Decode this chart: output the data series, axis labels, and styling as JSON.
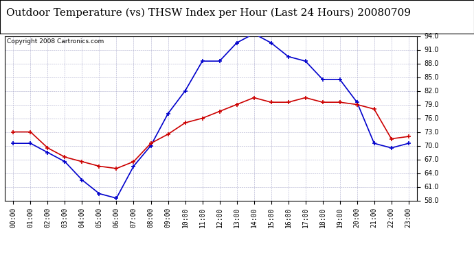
{
  "title": "Outdoor Temperature (vs) THSW Index per Hour (Last 24 Hours) 20080709",
  "copyright": "Copyright 2008 Cartronics.com",
  "hours": [
    "00:00",
    "01:00",
    "02:00",
    "03:00",
    "04:00",
    "05:00",
    "06:00",
    "07:00",
    "08:00",
    "09:00",
    "10:00",
    "11:00",
    "12:00",
    "13:00",
    "14:00",
    "15:00",
    "16:00",
    "17:00",
    "18:00",
    "19:00",
    "20:00",
    "21:00",
    "22:00",
    "23:00"
  ],
  "temp_red": [
    73.0,
    73.0,
    69.5,
    67.5,
    66.5,
    65.5,
    65.0,
    66.5,
    70.5,
    72.5,
    75.0,
    76.0,
    77.5,
    79.0,
    80.5,
    79.5,
    79.5,
    80.5,
    79.5,
    79.5,
    79.0,
    78.0,
    71.5,
    72.0
  ],
  "thsw_blue": [
    70.5,
    70.5,
    68.5,
    66.5,
    62.5,
    59.5,
    58.5,
    65.5,
    70.0,
    77.0,
    82.0,
    88.5,
    88.5,
    92.5,
    94.5,
    92.5,
    89.5,
    88.5,
    84.5,
    84.5,
    79.5,
    70.5,
    69.5,
    70.5
  ],
  "ylim": [
    58.0,
    94.0
  ],
  "yticks": [
    58.0,
    61.0,
    64.0,
    67.0,
    70.0,
    73.0,
    76.0,
    79.0,
    82.0,
    85.0,
    88.0,
    91.0,
    94.0
  ],
  "background_color": "#ffffff",
  "grid_color": "#aaaacc",
  "red_color": "#cc0000",
  "blue_color": "#0000cc",
  "title_fontsize": 11,
  "copyright_fontsize": 6.5
}
